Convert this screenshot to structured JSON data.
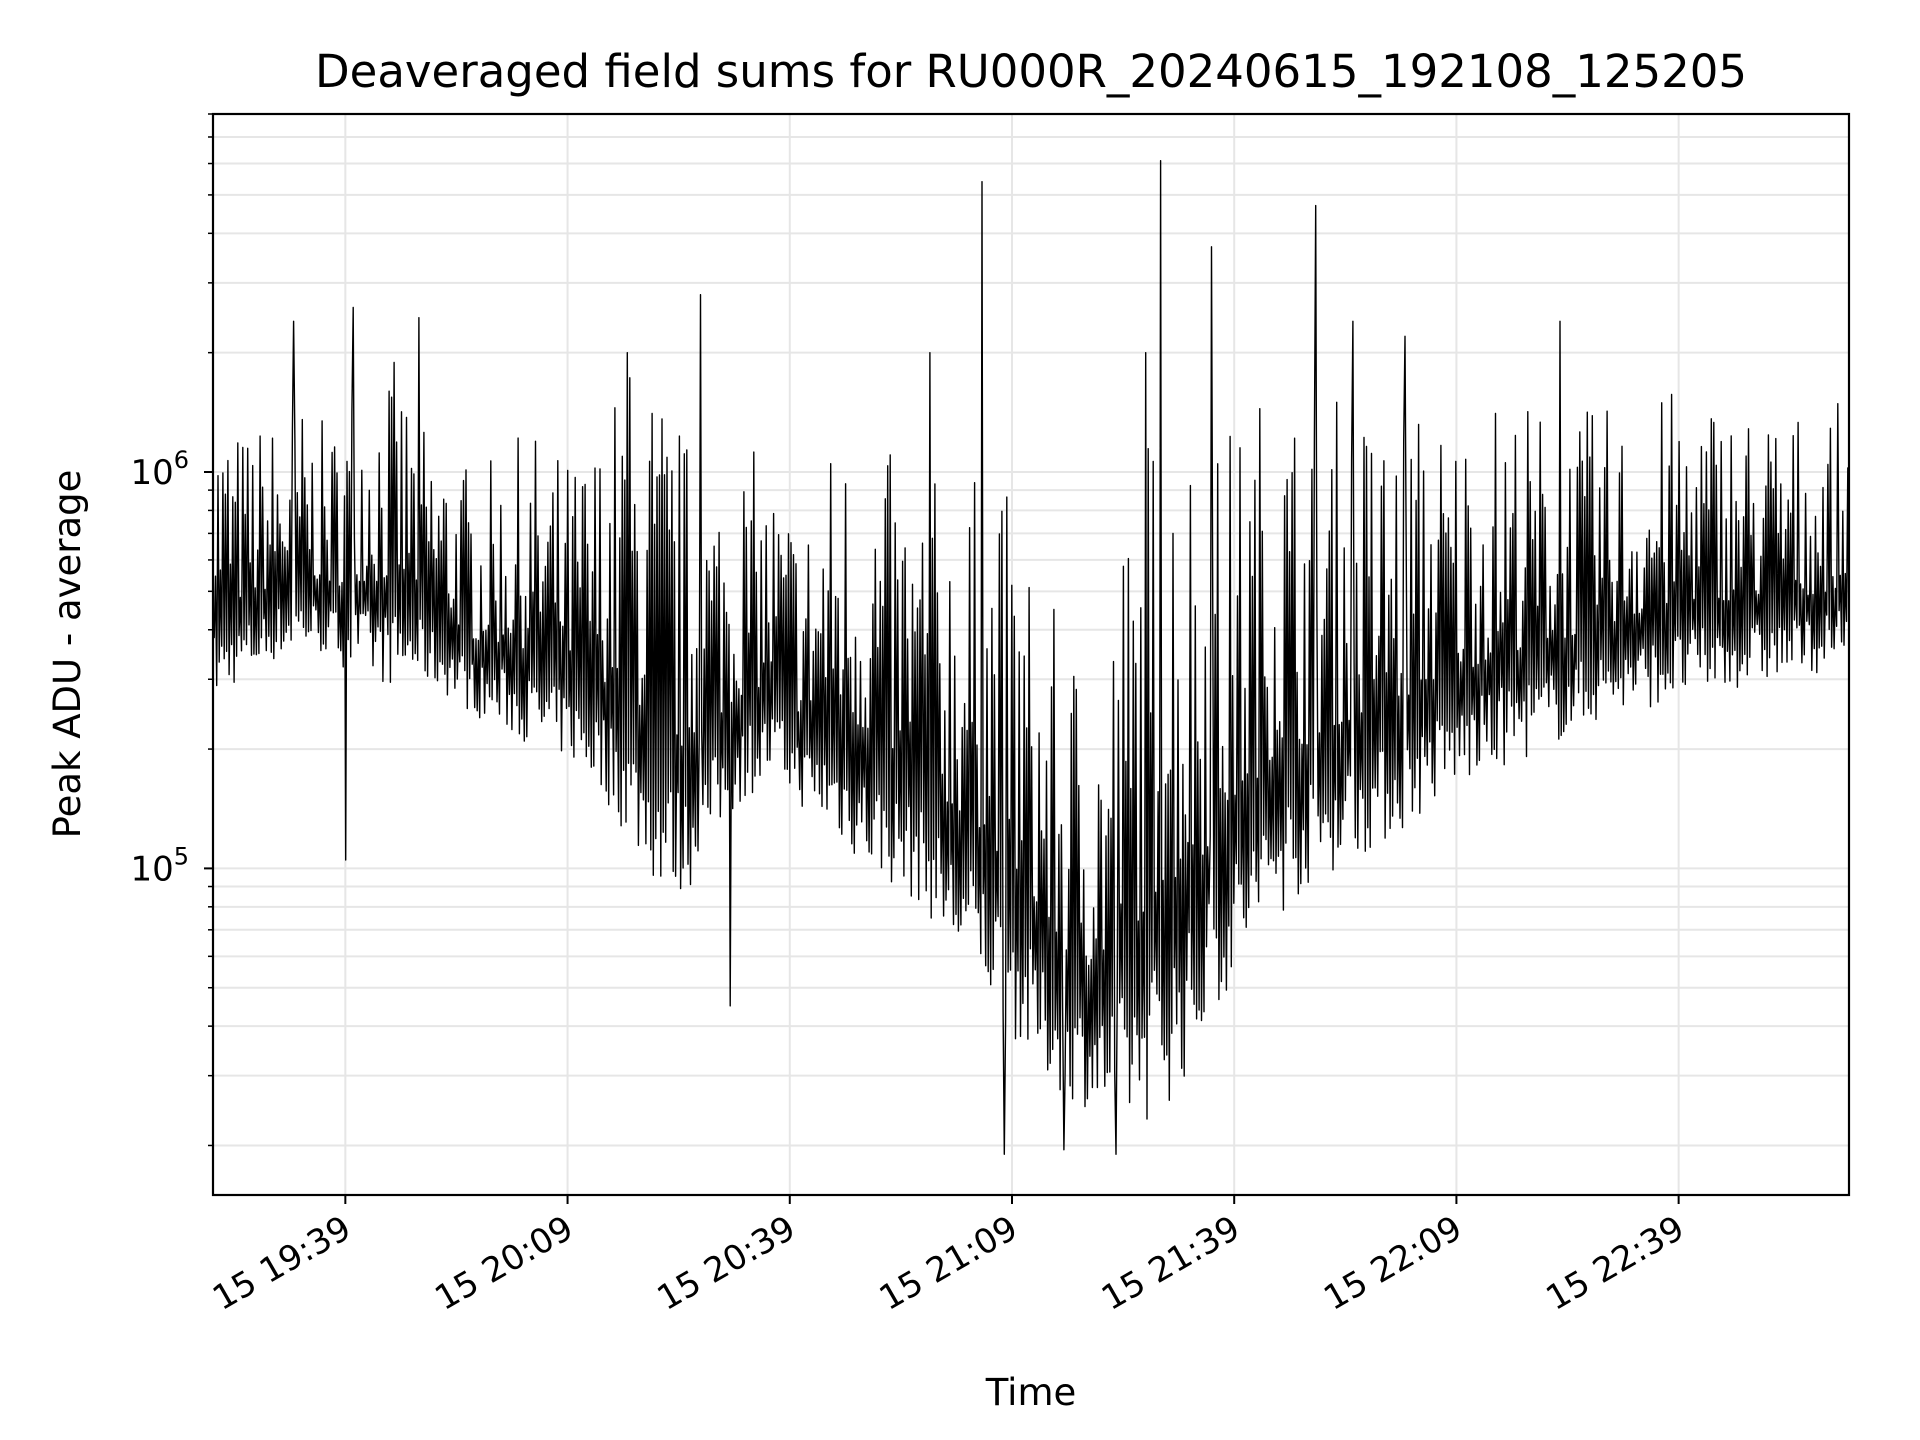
{
  "chart_data": {
    "type": "line",
    "title": "Deaveraged field sums for RU000R_20240615_192108_125205",
    "xlabel": "Time",
    "ylabel": "Peak ADU - average",
    "y_scale": "log",
    "grid": true,
    "line_color": "#000000",
    "grid_color": "#e6e6e6",
    "xlim": [
      "2024-06-15 19:21:08",
      "2024-06-15 23:02:00"
    ],
    "ylim": [
      15000,
      8000000
    ],
    "x_ticks": [
      {
        "value": "2024-06-15 19:39",
        "label": "15 19:39"
      },
      {
        "value": "2024-06-15 20:09",
        "label": "15 20:09"
      },
      {
        "value": "2024-06-15 20:39",
        "label": "15 20:39"
      },
      {
        "value": "2024-06-15 21:09",
        "label": "15 21:09"
      },
      {
        "value": "2024-06-15 21:39",
        "label": "15 21:39"
      },
      {
        "value": "2024-06-15 22:09",
        "label": "15 22:09"
      },
      {
        "value": "2024-06-15 22:39",
        "label": "15 22:39"
      }
    ],
    "y_ticks": [
      {
        "value": 100000,
        "base": "10",
        "exp": "5"
      },
      {
        "value": 1000000,
        "base": "10",
        "exp": "6"
      }
    ],
    "series": [
      {
        "x": [
          "19:21",
          "19:25",
          "19:29",
          "19:33",
          "19:37",
          "19:41",
          "19:45",
          "19:49",
          "19:53",
          "19:57",
          "20:01",
          "20:05",
          "20:09",
          "20:13",
          "20:17",
          "20:21",
          "20:25",
          "20:29",
          "20:33",
          "20:37",
          "20:41",
          "20:45",
          "20:49",
          "20:53",
          "20:57",
          "21:01",
          "21:05",
          "21:09",
          "21:13",
          "21:17",
          "21:21",
          "21:25",
          "21:29",
          "21:33",
          "21:37",
          "21:41",
          "21:45",
          "21:49",
          "21:53",
          "21:57",
          "22:01",
          "22:05",
          "22:09",
          "22:13",
          "22:17",
          "22:21",
          "22:25",
          "22:29",
          "22:33",
          "22:37",
          "22:41",
          "22:45",
          "22:49",
          "22:53",
          "22:57",
          "23:01"
        ],
        "low": [
          260000,
          300000,
          330000,
          360000,
          340000,
          300000,
          290000,
          300000,
          270000,
          240000,
          220000,
          200000,
          190000,
          160000,
          120000,
          90000,
          85000,
          120000,
          150000,
          170000,
          140000,
          120000,
          100000,
          90000,
          80000,
          60000,
          50000,
          38000,
          30000,
          26000,
          24000,
          22000,
          24000,
          30000,
          45000,
          60000,
          75000,
          90000,
          100000,
          110000,
          120000,
          140000,
          160000,
          170000,
          185000,
          200000,
          220000,
          240000,
          250000,
          260000,
          270000,
          280000,
          290000,
          300000,
          310000,
          320000
        ],
        "high": [
          1700000,
          1300000,
          1400000,
          1500000,
          1300000,
          2000000,
          2000000,
          1500000,
          1200000,
          1000000,
          1200000,
          1300000,
          1100000,
          1300000,
          2000000,
          1900000,
          1300000,
          1100000,
          1200000,
          1000000,
          800000,
          1300000,
          1300000,
          1100000,
          1000000,
          1000000,
          1000000,
          900000,
          500000,
          400000,
          350000,
          1000000,
          1800000,
          1500000,
          1300000,
          1500000,
          2000000,
          1400000,
          1600000,
          1500000,
          1500000,
          1500000,
          1400000,
          1600000,
          1600000,
          1500000,
          1400000,
          1500000,
          1400000,
          1600000,
          1700000,
          1600000,
          1500000,
          1500000,
          1400000,
          1500000
        ],
        "spikes": [
          {
            "x": "19:32",
            "y": 2400000
          },
          {
            "x": "19:40",
            "y": 2600000
          },
          {
            "x": "19:49",
            "y": 2450000
          },
          {
            "x": "20:17",
            "y": 2000000
          },
          {
            "x": "20:27",
            "y": 2800000
          },
          {
            "x": "20:58",
            "y": 2000000
          },
          {
            "x": "21:05",
            "y": 5400000
          },
          {
            "x": "21:27",
            "y": 2000000
          },
          {
            "x": "21:29",
            "y": 6100000
          },
          {
            "x": "21:36",
            "y": 3700000
          },
          {
            "x": "21:50",
            "y": 4700000
          },
          {
            "x": "21:55",
            "y": 2400000
          },
          {
            "x": "22:02",
            "y": 2200000
          },
          {
            "x": "22:23",
            "y": 2400000
          }
        ],
        "dips": [
          {
            "x": "19:39",
            "y": 105000
          },
          {
            "x": "20:31",
            "y": 45000
          },
          {
            "x": "21:08",
            "y": 19000
          },
          {
            "x": "21:16",
            "y": 19500
          },
          {
            "x": "21:23",
            "y": 19000
          }
        ]
      }
    ]
  }
}
